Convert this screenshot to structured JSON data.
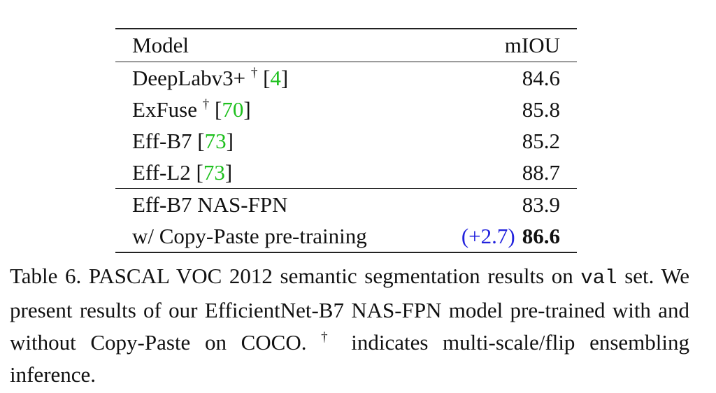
{
  "table": {
    "header": [
      "Model",
      "mIOU"
    ],
    "groups": [
      [
        {
          "model": "DeepLabv3+ ",
          "mark": "†",
          "open": " [",
          "ref": "4",
          "close": "]",
          "miou": 84.6
        },
        {
          "model": "ExFuse ",
          "mark": "†",
          "open": " [",
          "ref": "70",
          "close": "]",
          "miou": 85.8
        },
        {
          "model": "Eff-B7",
          "open": " [",
          "ref": "73",
          "close": "]",
          "miou": 85.2
        },
        {
          "model": "Eff-L2",
          "open": " [",
          "ref": "73",
          "close": "]",
          "miou": 88.7
        }
      ],
      [
        {
          "model": "Eff-B7 NAS-FPN",
          "miou": 83.9
        },
        {
          "model": "w/ Copy-Paste pre-training",
          "gain": "(+2.7)",
          "miou": 86.6,
          "bold": true
        }
      ]
    ]
  },
  "caption": [
    "Table 6. PASCAL VOC 2012 semantic segmentation results on ",
    "val",
    " set.  We present results of our EfficientNet-B7 NAS-FPN model pre-trained with and without Copy-Paste on COCO. ",
    "†",
    " indicates multi-scale/flip ensembling inference."
  ]
}
